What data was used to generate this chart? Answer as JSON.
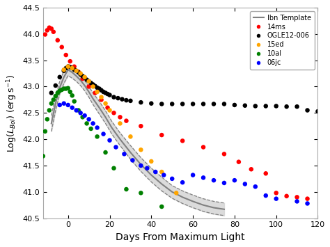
{
  "xlabel": "Days From Maximum Light",
  "ylabel": "Log($L_{Bol}$) (erg s$^{-1}$)",
  "xlim": [
    -12,
    120
  ],
  "ylim": [
    40.5,
    44.5
  ],
  "xticks": [
    0,
    20,
    40,
    60,
    80,
    100,
    120
  ],
  "yticks": [
    40.5,
    41.0,
    41.5,
    42.0,
    42.5,
    43.0,
    43.5,
    44.0,
    44.5
  ],
  "background_color": "#ffffff",
  "ibn_template_x": [
    -8,
    -6,
    -4,
    -2,
    0,
    2,
    4,
    6,
    8,
    10,
    12,
    15,
    18,
    21,
    25,
    30,
    35,
    40,
    45,
    50,
    55,
    60,
    65,
    70,
    75
  ],
  "ibn_template_y": [
    42.3,
    42.68,
    42.98,
    43.18,
    43.32,
    43.27,
    43.2,
    43.12,
    43.02,
    42.9,
    42.77,
    42.6,
    42.42,
    42.22,
    42.0,
    41.75,
    41.52,
    41.32,
    41.15,
    41.0,
    40.9,
    40.82,
    40.75,
    40.7,
    40.67
  ],
  "ibn_template_upper": [
    42.45,
    42.82,
    43.1,
    43.3,
    43.43,
    43.38,
    43.3,
    43.22,
    43.12,
    43.0,
    42.88,
    42.72,
    42.54,
    42.34,
    42.12,
    41.88,
    41.65,
    41.45,
    41.28,
    41.12,
    41.02,
    40.94,
    40.87,
    40.82,
    40.79
  ],
  "ibn_template_lower": [
    42.15,
    42.54,
    42.86,
    43.06,
    43.21,
    43.16,
    43.1,
    43.02,
    42.92,
    42.8,
    42.66,
    42.48,
    42.3,
    42.1,
    41.88,
    41.62,
    41.39,
    41.19,
    41.02,
    40.88,
    40.78,
    40.7,
    40.63,
    40.58,
    40.55
  ],
  "sn14ms_x": [
    -11,
    -10,
    -9,
    -8,
    -7,
    -5,
    -3,
    -1,
    1,
    3,
    5,
    7,
    10,
    13,
    16,
    19,
    22,
    25,
    28,
    35,
    45,
    55,
    65,
    75,
    82,
    88,
    95,
    100,
    105,
    110,
    115
  ],
  "sn14ms_y": [
    43.99,
    44.07,
    44.12,
    44.1,
    44.04,
    43.88,
    43.75,
    43.6,
    43.48,
    43.38,
    43.28,
    43.15,
    43.0,
    42.88,
    42.75,
    42.6,
    42.5,
    42.42,
    42.35,
    42.25,
    42.08,
    41.97,
    41.85,
    41.72,
    41.57,
    41.43,
    41.35,
    40.98,
    40.92,
    40.9,
    40.87
  ],
  "ogle_x": [
    -8,
    -6,
    -4,
    -2,
    -1,
    0,
    1,
    2,
    3,
    4,
    5,
    6,
    7,
    8,
    9,
    10,
    11,
    12,
    13,
    14,
    15,
    16,
    17,
    18,
    19,
    20,
    22,
    24,
    26,
    28,
    30,
    35,
    40,
    45,
    50,
    55,
    60,
    65,
    70,
    75,
    80,
    85,
    90,
    95,
    100,
    105,
    110,
    115,
    120
  ],
  "ogle_y": [
    42.88,
    43.02,
    43.18,
    43.3,
    43.35,
    43.38,
    43.37,
    43.35,
    43.32,
    43.3,
    43.27,
    43.23,
    43.2,
    43.17,
    43.13,
    43.1,
    43.07,
    43.04,
    43.01,
    42.98,
    42.96,
    42.93,
    42.9,
    42.88,
    42.86,
    42.84,
    42.8,
    42.78,
    42.76,
    42.74,
    42.73,
    42.7,
    42.68,
    42.67,
    42.67,
    42.67,
    42.67,
    42.67,
    42.67,
    42.67,
    42.65,
    42.64,
    42.63,
    42.63,
    42.63,
    42.62,
    42.62,
    42.55,
    42.53
  ],
  "sn15ed_x": [
    -2,
    0,
    2,
    4,
    6,
    8,
    10,
    12,
    14,
    16,
    18,
    20,
    25,
    30,
    35,
    40,
    45,
    52
  ],
  "sn15ed_y": [
    43.32,
    43.38,
    43.35,
    43.3,
    43.25,
    43.18,
    43.1,
    43.0,
    42.9,
    42.8,
    42.68,
    42.55,
    42.3,
    42.05,
    41.8,
    41.58,
    41.38,
    40.98
  ],
  "sn10al_x": [
    -12,
    -11,
    -10,
    -9,
    -8,
    -7,
    -6,
    -5,
    -4,
    -3,
    -2,
    -1,
    0,
    1,
    2,
    3,
    5,
    7,
    9,
    11,
    14,
    18,
    22,
    28,
    35,
    45
  ],
  "sn10al_y": [
    41.68,
    42.15,
    42.38,
    42.55,
    42.68,
    42.75,
    42.82,
    42.88,
    42.92,
    42.94,
    42.96,
    42.96,
    42.97,
    42.9,
    42.83,
    42.72,
    42.55,
    42.42,
    42.3,
    42.2,
    42.05,
    41.75,
    41.45,
    41.05,
    40.98,
    40.72
  ],
  "sn06jc_x": [
    -4,
    -2,
    0,
    2,
    4,
    6,
    8,
    10,
    12,
    14,
    17,
    20,
    23,
    27,
    31,
    35,
    38,
    42,
    46,
    50,
    55,
    60,
    65,
    70,
    75,
    80,
    85,
    90,
    95,
    100,
    110,
    115
  ],
  "sn06jc_y": [
    42.65,
    42.68,
    42.65,
    42.6,
    42.55,
    42.5,
    42.45,
    42.38,
    42.3,
    42.22,
    42.1,
    41.98,
    41.85,
    41.72,
    41.6,
    41.5,
    41.45,
    41.38,
    41.32,
    41.25,
    41.18,
    41.32,
    41.27,
    41.22,
    41.17,
    41.22,
    41.15,
    41.1,
    40.93,
    40.87,
    40.82,
    40.78
  ],
  "colors": {
    "14ms": "#ff0000",
    "ogle": "#000000",
    "15ed": "#ffa500",
    "10al": "#008000",
    "06jc": "#0000ff",
    "template": "#808080"
  },
  "dot_size": 22
}
